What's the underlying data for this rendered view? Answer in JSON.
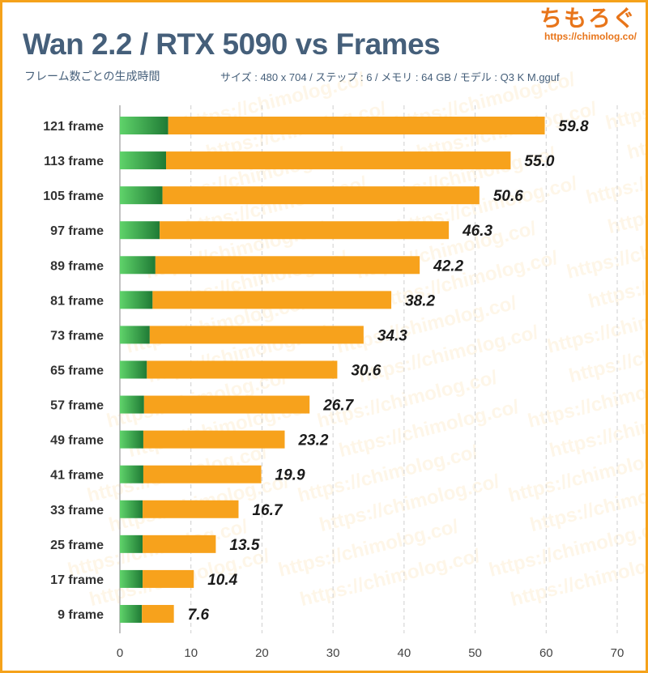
{
  "header": {
    "title": "Wan 2.2 / RTX 5090 vs Frames",
    "subtitle": "フレーム数ごとの生成時間",
    "params": "サイズ : 480 x 704 / ステップ : 6 / メモリ : 64 GB / モデル : Q3 K M.gguf"
  },
  "logo": {
    "name": "ちもろぐ",
    "url": "https://chimolog.co/"
  },
  "watermark": "https://chimolog.co/",
  "colors": {
    "primary_bar": "#f7a21c",
    "secondary_bar_light": "#5fd36a",
    "secondary_bar_dark": "#1f7a35",
    "text": "#222222",
    "title": "#455f7a",
    "frame": "#f5a21b"
  },
  "chart_data": {
    "type": "bar",
    "orientation": "horizontal",
    "stacked": true,
    "categories": [
      "121 frame",
      "113 frame",
      "105 frame",
      "97 frame",
      "89 frame",
      "81 frame",
      "73 frame",
      "65 frame",
      "57 frame",
      "49 frame",
      "41 frame",
      "33 frame",
      "25 frame",
      "17 frame",
      "9 frame"
    ],
    "series": [
      {
        "values": [
          6.8,
          6.5,
          6.0,
          5.6,
          5.0,
          4.6,
          4.2,
          3.8,
          3.4,
          3.3,
          3.3,
          3.2,
          3.2,
          3.2,
          3.1
        ]
      },
      {
        "values": [
          53.0,
          48.5,
          44.6,
          40.7,
          37.2,
          33.6,
          30.1,
          26.8,
          23.3,
          19.9,
          16.6,
          13.5,
          10.3,
          7.2,
          4.5
        ]
      }
    ],
    "totals": [
      59.8,
      55.0,
      50.6,
      46.3,
      42.2,
      38.2,
      34.3,
      30.6,
      26.7,
      23.2,
      19.9,
      16.7,
      13.5,
      10.4,
      7.6
    ],
    "total_labels": [
      "59.8",
      "55.0",
      "50.6",
      "46.3",
      "42.2",
      "38.2",
      "34.3",
      "30.6",
      "26.7",
      "23.2",
      "19.9",
      "16.7",
      "13.5",
      "10.4",
      "7.6"
    ],
    "xticks": [
      "0",
      "10",
      "20",
      "30",
      "40",
      "50",
      "60",
      "70"
    ],
    "xlim": [
      0,
      70
    ],
    "grid": true,
    "legend": "none"
  }
}
